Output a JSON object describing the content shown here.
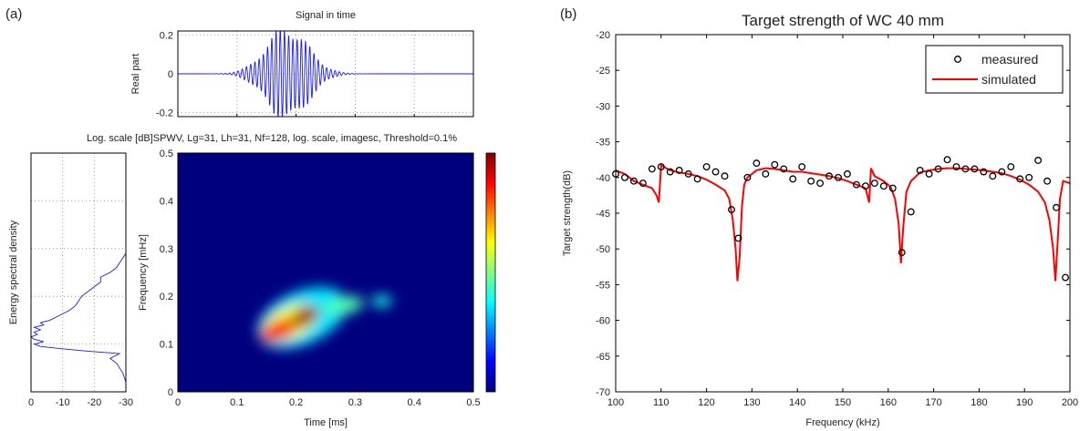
{
  "panels": {
    "a_label": "(a)",
    "b_label": "(b)"
  },
  "chart_data": [
    {
      "id": "signal",
      "type": "line",
      "title": "Signal in time",
      "ylabel": "Real part",
      "xlim": [
        0,
        0.5
      ],
      "ylim": [
        -0.22,
        0.22
      ],
      "xticks": [
        0,
        0.1,
        0.2,
        0.3,
        0.4,
        0.5
      ],
      "yticks": [
        -0.2,
        0,
        0.2
      ],
      "ytick_labels": [
        "-0.2",
        "0",
        "0.2"
      ],
      "grid": true,
      "envelope": {
        "center": 0.185,
        "width": 0.05,
        "amplitude": 0.22,
        "carrier_per_ms": 140
      },
      "color": "#1a1aff"
    },
    {
      "id": "spectrogram",
      "type": "heatmap",
      "title": "Log. scale [dB]SPWV, Lg=31, Lh=31, Nf=128, log. scale, imagesc, Threshold=0.1%",
      "xlabel": "Time [ms]",
      "ylabel": "Frequency [mHz]",
      "xlim": [
        0,
        0.5
      ],
      "ylim": [
        0,
        0.5
      ],
      "xticks": [
        0,
        0.1,
        0.2,
        0.3,
        0.4,
        0.5
      ],
      "xtick_labels": [
        "0",
        "0.1",
        "0.2",
        "0.3",
        "0.4",
        "0.5"
      ],
      "yticks": [
        0,
        0.1,
        0.2,
        0.3,
        0.4,
        0.5
      ],
      "ytick_labels": [
        "0",
        "0.1",
        "0.2",
        "0.3",
        "0.4",
        "0.5"
      ],
      "colormap": "jet",
      "background": "#00007f",
      "blobs": [
        {
          "t": 0.21,
          "f": 0.155,
          "rt": 0.16,
          "rf": 0.055,
          "rot": -24,
          "level": 0.35
        },
        {
          "t": 0.19,
          "f": 0.145,
          "rt": 0.1,
          "rf": 0.032,
          "rot": -24,
          "level": 0.62
        },
        {
          "t": 0.17,
          "f": 0.128,
          "rt": 0.065,
          "rf": 0.02,
          "rot": -22,
          "level": 0.88
        },
        {
          "t": 0.215,
          "f": 0.158,
          "rt": 0.05,
          "rf": 0.018,
          "rot": -28,
          "level": 0.97
        },
        {
          "t": 0.28,
          "f": 0.18,
          "rt": 0.07,
          "rf": 0.018,
          "rot": -12,
          "level": 0.45
        },
        {
          "t": 0.345,
          "f": 0.19,
          "rt": 0.035,
          "rf": 0.012,
          "rot": 0,
          "level": 0.4
        }
      ]
    },
    {
      "id": "energy",
      "type": "line",
      "ylabel": "Energy spectral density",
      "xlim": [
        0,
        -30
      ],
      "xticks": [
        0,
        -10,
        -20,
        -30
      ],
      "xtick_labels": [
        "0",
        "-10",
        "-20",
        "-30"
      ],
      "grid": true,
      "color": "#1a1aff",
      "f": [
        0.0,
        0.02,
        0.04,
        0.06,
        0.07,
        0.08,
        0.085,
        0.09,
        0.095,
        0.1,
        0.105,
        0.11,
        0.115,
        0.12,
        0.125,
        0.13,
        0.135,
        0.14,
        0.145,
        0.15,
        0.16,
        0.17,
        0.18,
        0.19,
        0.2,
        0.21,
        0.22,
        0.23,
        0.24,
        0.25,
        0.26,
        0.27,
        0.28,
        0.29,
        0.3,
        0.32,
        0.35,
        0.4,
        0.45,
        0.5
      ],
      "db": [
        -30,
        -30,
        -29,
        -27,
        -25,
        -28,
        -18,
        -10,
        -3,
        -1,
        -4,
        -1,
        0,
        -2,
        -1,
        -3,
        -1,
        -4,
        -3,
        -6,
        -9,
        -12,
        -14,
        -15,
        -16,
        -18,
        -20,
        -22,
        -22,
        -25,
        -27,
        -28,
        -29,
        -30,
        -30,
        -30,
        -30,
        -30,
        -30,
        -30
      ]
    },
    {
      "id": "target_strength",
      "type": "line",
      "title": "Target strength of WC 40 mm",
      "xlabel": "Frequency (kHz)",
      "ylabel": "Target strength(dB)",
      "xlim": [
        100,
        200
      ],
      "ylim": [
        -70,
        -20
      ],
      "xticks": [
        100,
        110,
        120,
        130,
        140,
        150,
        160,
        170,
        180,
        190,
        200
      ],
      "xtick_labels": [
        "100",
        "110",
        "120",
        "130",
        "140",
        "150",
        "160",
        "170",
        "180",
        "190",
        "200"
      ],
      "yticks": [
        -70,
        -65,
        -60,
        -55,
        -50,
        -45,
        -40,
        -35,
        -30,
        -25,
        -20
      ],
      "ytick_labels": [
        "-70",
        "-65",
        "-60",
        "-55",
        "-50",
        "-45",
        "-40",
        "-35",
        "-30",
        "-25",
        "-20"
      ],
      "legend": "top-right",
      "series": [
        {
          "name": "measured",
          "marker": "circle",
          "color": "#000000",
          "x": [
            100,
            102,
            104,
            106,
            108,
            110,
            112,
            114,
            116,
            118,
            120,
            122,
            124,
            125.5,
            127,
            129,
            131,
            133,
            135,
            137,
            139,
            141,
            143,
            145,
            147,
            149,
            151,
            153,
            155,
            157,
            159,
            161,
            163,
            165,
            167,
            169,
            171,
            173,
            175,
            177,
            179,
            181,
            183,
            185,
            187,
            189,
            191,
            193,
            195,
            197,
            199
          ],
          "y": [
            -39.5,
            -40,
            -40.5,
            -40.8,
            -38.8,
            -38.5,
            -39.2,
            -39,
            -39.5,
            -40.2,
            -38.5,
            -39.2,
            -39.8,
            -44.5,
            -48.5,
            -40,
            -38,
            -39.5,
            -38.2,
            -38.8,
            -40.2,
            -38.5,
            -40.5,
            -40.8,
            -39.8,
            -40,
            -39.5,
            -41,
            -41.2,
            -40.8,
            -41.2,
            -41.5,
            -50.5,
            -44.8,
            -39,
            -39.5,
            -38.8,
            -37.5,
            -38.5,
            -38.8,
            -38.8,
            -39.2,
            -39.8,
            -39.2,
            -38.5,
            -40.2,
            -40,
            -37.6,
            -40.5,
            -44.2,
            -54
          ]
        },
        {
          "name": "simulated",
          "color": "#ff0000",
          "x": [
            100,
            102,
            104,
            106,
            108,
            109,
            109.5,
            110,
            112,
            114,
            116,
            118,
            120,
            122,
            124,
            125,
            125.8,
            126.4,
            126.8,
            127.3,
            127.8,
            128.3,
            129,
            131,
            133,
            135,
            137,
            139,
            141,
            143,
            145,
            147,
            149,
            151,
            153,
            155,
            155.8,
            156.2,
            157,
            159,
            160.5,
            161.5,
            162.3,
            162.8,
            163.3,
            164,
            165,
            167,
            169,
            171,
            173,
            175,
            177,
            179,
            181,
            183,
            185,
            187,
            189,
            191,
            193,
            194.5,
            195.5,
            196.3,
            196.8,
            197.3,
            197.8,
            198.5,
            200
          ],
          "y": [
            -39,
            -39.5,
            -40.5,
            -41,
            -41.5,
            -42.5,
            -43.5,
            -38.3,
            -39,
            -39.3,
            -39.5,
            -39.8,
            -40.3,
            -41,
            -41.8,
            -43,
            -46,
            -50,
            -54.5,
            -51,
            -44,
            -41,
            -40,
            -39,
            -38.7,
            -38.8,
            -39,
            -39.2,
            -39.2,
            -39.4,
            -39.6,
            -39.8,
            -40.1,
            -40.5,
            -41,
            -41.5,
            -43.5,
            -38.7,
            -39.8,
            -40.5,
            -41.3,
            -43,
            -46.5,
            -52,
            -47,
            -42,
            -40.5,
            -39.3,
            -39,
            -38.8,
            -38.7,
            -38.7,
            -38.8,
            -38.9,
            -39,
            -39.2,
            -39.4,
            -39.8,
            -40.3,
            -41,
            -42,
            -43.5,
            -46,
            -50,
            -54.5,
            -49,
            -43,
            -40.5,
            -40.8
          ]
        }
      ]
    }
  ]
}
